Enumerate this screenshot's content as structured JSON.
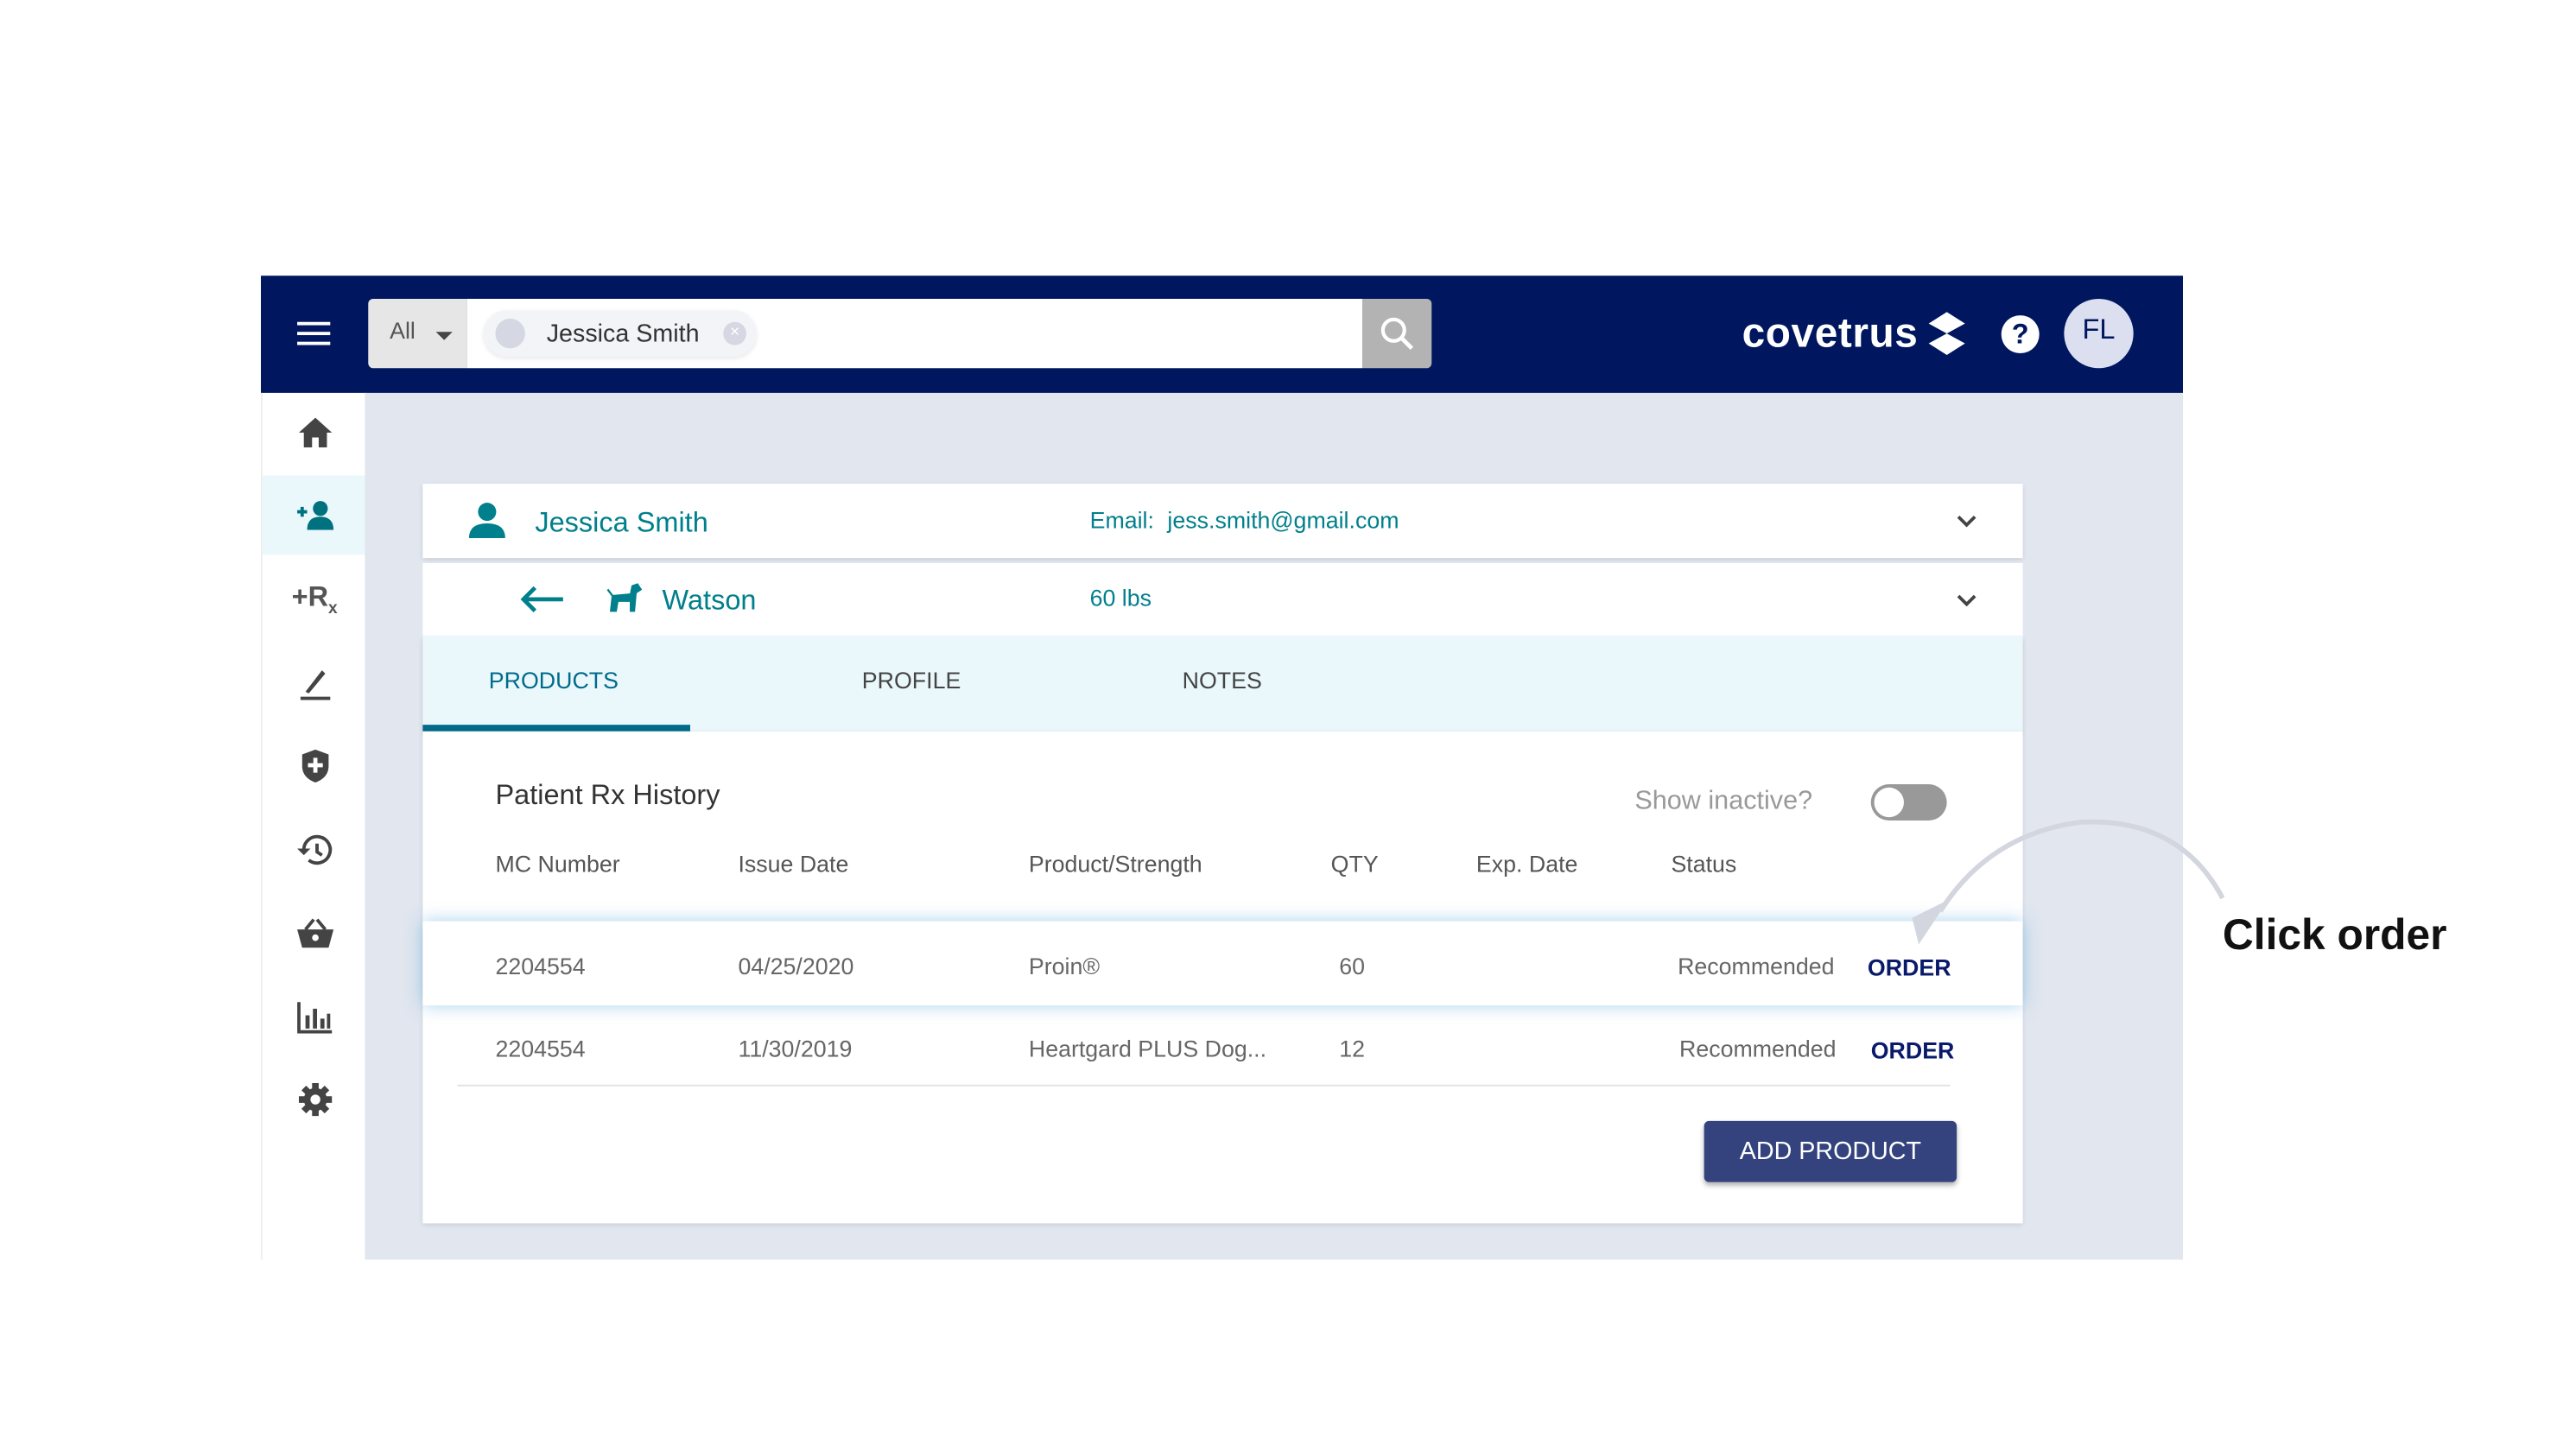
{
  "header": {
    "scope_select": "All",
    "search_chip": "Jessica Smith",
    "logo": "covetrus",
    "avatar_initials": "FL",
    "icons": [
      "menu-icon",
      "search-icon",
      "help-icon"
    ]
  },
  "sidebar": {
    "items": [
      {
        "icon": "home-icon"
      },
      {
        "icon": "add-client-icon",
        "active": true
      },
      {
        "icon": "rx-icon"
      },
      {
        "icon": "edit-icon"
      },
      {
        "icon": "shield-icon"
      },
      {
        "icon": "history-icon"
      },
      {
        "icon": "basket-icon"
      },
      {
        "icon": "chart-icon"
      },
      {
        "icon": "settings-icon"
      }
    ]
  },
  "client": {
    "name": "Jessica Smith",
    "email_label": "Email:",
    "email": "jess.smith@gmail.com"
  },
  "pet": {
    "name": "Watson",
    "weight": "60 lbs"
  },
  "tabs": [
    {
      "label": "PRODUCTS",
      "active": true
    },
    {
      "label": "PROFILE"
    },
    {
      "label": "NOTES"
    }
  ],
  "rx_history": {
    "title": "Patient Rx History",
    "show_inactive_label": "Show inactive?",
    "show_inactive": false,
    "columns": [
      "MC Number",
      "Issue Date",
      "Product/Strength",
      "QTY",
      "Exp. Date",
      "Status"
    ],
    "rows": [
      {
        "mc": "2204554",
        "issue": "04/25/2020",
        "product": "Proin®",
        "qty": "60",
        "exp": "",
        "status": "Recommended",
        "action": "ORDER"
      },
      {
        "mc": "2204554",
        "issue": "11/30/2019",
        "product": "Heartgard PLUS Dog...",
        "qty": "12",
        "exp": "",
        "status": "Recommended",
        "action": "ORDER"
      }
    ],
    "add_button": "ADD PRODUCT"
  },
  "annotation": {
    "text": "Click order"
  },
  "colors": {
    "header": "#00175f",
    "teal": "#007f8c",
    "button": "#34437e",
    "order": "#0a1a6a"
  }
}
